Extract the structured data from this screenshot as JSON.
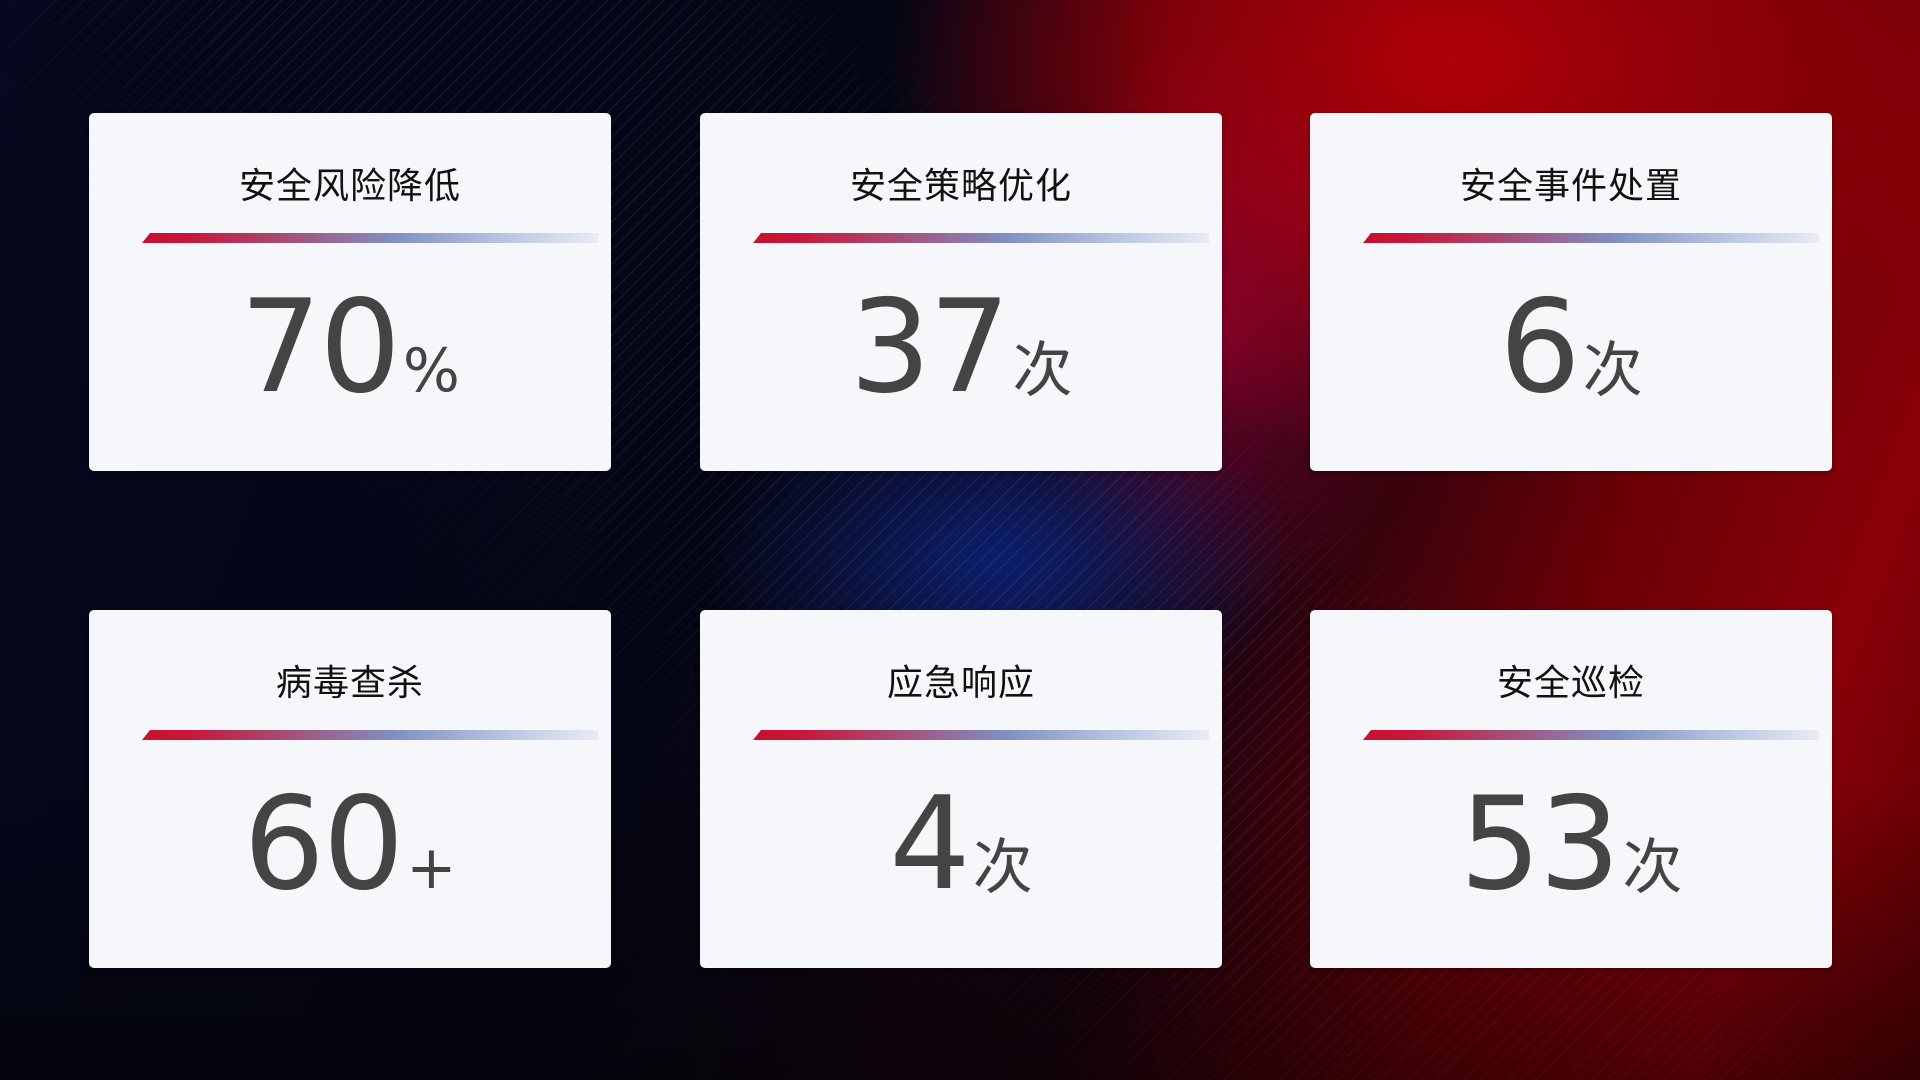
{
  "cards": [
    {
      "title": "安全风险降低",
      "value": "70",
      "unit": "%"
    },
    {
      "title": "安全策略优化",
      "value": "37",
      "unit": "次"
    },
    {
      "title": "安全事件处置",
      "value": "6",
      "unit": "次"
    },
    {
      "title": "病毒查杀",
      "value": "60",
      "unit": "+"
    },
    {
      "title": "应急响应",
      "value": "4",
      "unit": "次"
    },
    {
      "title": "安全巡检",
      "value": "53",
      "unit": "次"
    }
  ],
  "colors": {
    "accent_red": "#c8102e",
    "accent_blue": "#7f8fc2",
    "card_bg": "#f6f7fb",
    "value_text": "#444444"
  }
}
